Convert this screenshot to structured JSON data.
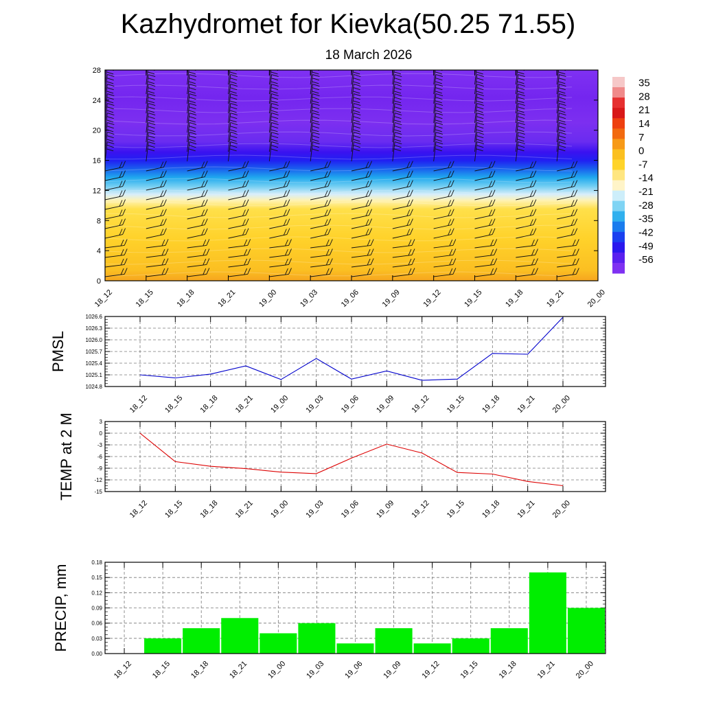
{
  "title": "Kazhydromet for Kievka(50.25 71.55)",
  "subtitle": "18 March 2026",
  "colors": {
    "pmsl_line": "#0000cc",
    "temp_line": "#dd0000",
    "precip_bar": "#00ee00",
    "grid": "#777777"
  },
  "chart_data": [
    {
      "type": "heatmap",
      "name": "upper-air-section",
      "title": "",
      "x_ticks": [
        "18_12",
        "18_15",
        "18_18",
        "18_21",
        "19_00",
        "19_03",
        "19_06",
        "19_09",
        "19_12",
        "19_15",
        "19_18",
        "19_21",
        "20_00"
      ],
      "y_ticks": [
        0,
        4,
        8,
        12,
        16,
        20,
        24,
        28
      ],
      "ylim": [
        0,
        28
      ],
      "colorbar": {
        "labels": [
          "35",
          "28",
          "21",
          "14",
          "7",
          "0",
          "-7",
          "-14",
          "-21",
          "-28",
          "-35",
          "-42",
          "-49",
          "-56"
        ],
        "range": [
          -63,
          38
        ]
      },
      "description_levels": {
        "z": [
          0,
          2,
          4,
          6,
          8,
          10,
          11,
          12,
          13,
          14,
          15,
          16,
          17,
          18,
          20,
          22,
          24,
          26,
          28
        ],
        "value": [
          2,
          1,
          0,
          -2,
          -4,
          -7,
          -10,
          -16,
          -24,
          -32,
          -40,
          -48,
          -54,
          -58,
          -56,
          -54,
          -57,
          -55,
          -53
        ]
      },
      "wind_barbs": true
    },
    {
      "type": "line",
      "name": "pmsl",
      "ylabel": "PMSL",
      "categories": [
        "18_12",
        "18_15",
        "18_18",
        "18_21",
        "19_00",
        "19_03",
        "19_06",
        "19_09",
        "19_12",
        "19_15",
        "19_18",
        "19_21",
        "20_00"
      ],
      "values": [
        1025.1,
        1025.02,
        1025.12,
        1025.33,
        1024.98,
        1025.52,
        1024.99,
        1025.2,
        1024.96,
        1024.99,
        1025.65,
        1025.63,
        1026.58
      ],
      "y_ticks": [
        "1024.8",
        "1025.1",
        "1025.4",
        "1025.7",
        "1026.0",
        "1026.3",
        "1026.6"
      ],
      "ylim": [
        1024.8,
        1026.6
      ],
      "grid": true
    },
    {
      "type": "line",
      "name": "temp",
      "ylabel": "TEMP at 2 M",
      "categories": [
        "18_12",
        "18_15",
        "18_18",
        "18_21",
        "19_00",
        "19_03",
        "19_06",
        "19_09",
        "19_12",
        "19_15",
        "19_18",
        "19_21",
        "20_00"
      ],
      "values": [
        0,
        -7.3,
        -8.5,
        -9.1,
        -10.0,
        -10.4,
        -6.4,
        -2.8,
        -5.1,
        -10.1,
        -10.5,
        -12.4,
        -13.5
      ],
      "y_ticks": [
        "-15",
        "-12",
        "-9",
        "-6",
        "-3",
        "0",
        "3"
      ],
      "ylim": [
        -15,
        3
      ],
      "grid": true
    },
    {
      "type": "bar",
      "name": "precip",
      "ylabel": "PRECIP, mm",
      "categories": [
        "18_12",
        "18_15",
        "18_18",
        "18_21",
        "19_00",
        "19_03",
        "19_06",
        "19_09",
        "19_12",
        "19_15",
        "19_18",
        "19_21",
        "20_00"
      ],
      "values": [
        0,
        0.03,
        0.05,
        0.07,
        0.04,
        0.06,
        0.02,
        0.05,
        0.02,
        0.03,
        0.05,
        0.16,
        0.09
      ],
      "y_ticks": [
        "0.00",
        "0.03",
        "0.06",
        "0.09",
        "0.12",
        "0.15",
        "0.18"
      ],
      "ylim": [
        0,
        0.18
      ],
      "grid": true
    }
  ]
}
